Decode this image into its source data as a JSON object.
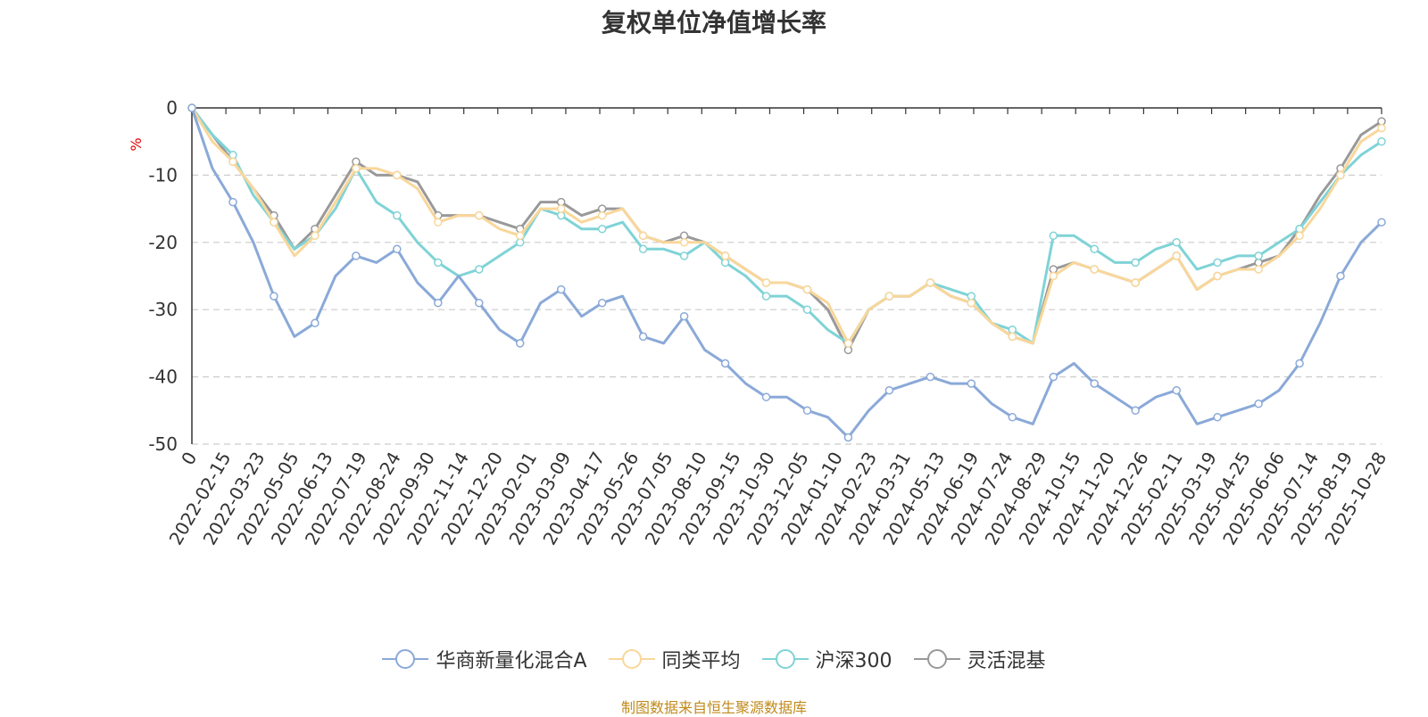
{
  "chart_data": {
    "type": "line",
    "title": "复权单位净值增长率",
    "ylabel": "%",
    "ylim": [
      -50,
      0
    ],
    "yticks": [
      0,
      -10,
      -20,
      -30,
      -40,
      -50
    ],
    "x_ticks": [
      "0",
      "2022-02-15",
      "2022-03-23",
      "2022-05-05",
      "2022-06-13",
      "2022-07-19",
      "2022-08-24",
      "2022-09-30",
      "2022-11-14",
      "2022-12-20",
      "2023-02-01",
      "2023-03-09",
      "2023-04-17",
      "2023-05-26",
      "2023-07-05",
      "2023-08-10",
      "2023-09-15",
      "2023-10-30",
      "2023-12-05",
      "2024-01-10",
      "2024-02-23",
      "2024-03-31",
      "2024-05-13",
      "2024-06-19",
      "2024-07-24",
      "2024-08-29",
      "2024-10-15",
      "2024-11-20",
      "2024-12-26",
      "2025-02-11",
      "2025-03-19",
      "2025-04-25",
      "2025-06-06",
      "2025-07-14",
      "2025-08-19",
      "2025-10-28"
    ],
    "grid": true,
    "legend_position": "bottom-center",
    "series": [
      {
        "name": "华商新量化混合A",
        "color": "#8aa9d8",
        "values": [
          0,
          -9,
          -14,
          -20,
          -28,
          -34,
          -32,
          -25,
          -22,
          -23,
          -21,
          -26,
          -29,
          -25,
          -29,
          -33,
          -35,
          -29,
          -27,
          -31,
          -29,
          -28,
          -34,
          -35,
          -31,
          -36,
          -38,
          -41,
          -43,
          -43,
          -45,
          -46,
          -49,
          -45,
          -42,
          -41,
          -40,
          -41,
          -41,
          -44,
          -46,
          -47,
          -40,
          -38,
          -41,
          -43,
          -45,
          -43,
          -42,
          -47,
          -46,
          -45,
          -44,
          -42,
          -38,
          -32,
          -25,
          -20,
          -17
        ]
      },
      {
        "name": "同类平均",
        "color": "#f9d79a",
        "values": [
          0,
          -5,
          -8,
          -12,
          -17,
          -22,
          -19,
          -14,
          -9,
          -9,
          -10,
          -12,
          -17,
          -16,
          -16,
          -18,
          -19,
          -15,
          -15,
          -17,
          -16,
          -15,
          -19,
          -20,
          -20,
          -20,
          -22,
          -24,
          -26,
          -26,
          -27,
          -29,
          -35,
          -30,
          -28,
          -28,
          -26,
          -28,
          -29,
          -32,
          -34,
          -35,
          -25,
          -23,
          -24,
          -25,
          -26,
          -24,
          -22,
          -27,
          -25,
          -24,
          -24,
          -22,
          -19,
          -15,
          -10,
          -5,
          -3
        ]
      },
      {
        "name": "沪深300",
        "color": "#7fd3d6",
        "values": [
          0,
          -4,
          -7,
          -13,
          -17,
          -21,
          -19,
          -15,
          -9,
          -14,
          -16,
          -20,
          -23,
          -25,
          -24,
          -22,
          -20,
          -15,
          -16,
          -18,
          -18,
          -17,
          -21,
          -21,
          -22,
          -20,
          -23,
          -25,
          -28,
          -28,
          -30,
          -33,
          -35,
          -30,
          -28,
          -28,
          -26,
          -27,
          -28,
          -32,
          -33,
          -35,
          -19,
          -19,
          -21,
          -23,
          -23,
          -21,
          -20,
          -24,
          -23,
          -22,
          -22,
          -20,
          -18,
          -14,
          -10,
          -7,
          -5
        ]
      },
      {
        "name": "灵活混基",
        "color": "#999999",
        "values": [
          0,
          -4,
          -8,
          -12,
          -16,
          -21,
          -18,
          -13,
          -8,
          -10,
          -10,
          -11,
          -16,
          -16,
          -16,
          -17,
          -18,
          -14,
          -14,
          -16,
          -15,
          -15,
          -19,
          -20,
          -19,
          -20,
          -22,
          -24,
          -26,
          -26,
          -27,
          -30,
          -36,
          -30,
          -28,
          -28,
          -26,
          -28,
          -29,
          -32,
          -34,
          -35,
          -24,
          -23,
          -24,
          -25,
          -26,
          -24,
          -22,
          -27,
          -25,
          -24,
          -23,
          -22,
          -18,
          -13,
          -9,
          -4,
          -2
        ]
      }
    ]
  },
  "legend": {
    "items": [
      {
        "label": "华商新量化混合A",
        "color": "#8aa9d8"
      },
      {
        "label": "同类平均",
        "color": "#f9d79a"
      },
      {
        "label": "沪深300",
        "color": "#7fd3d6"
      },
      {
        "label": "灵活混基",
        "color": "#999999"
      }
    ]
  },
  "source": {
    "text": "制图数据来自恒生聚源数据库",
    "color": "#c08a1c"
  }
}
